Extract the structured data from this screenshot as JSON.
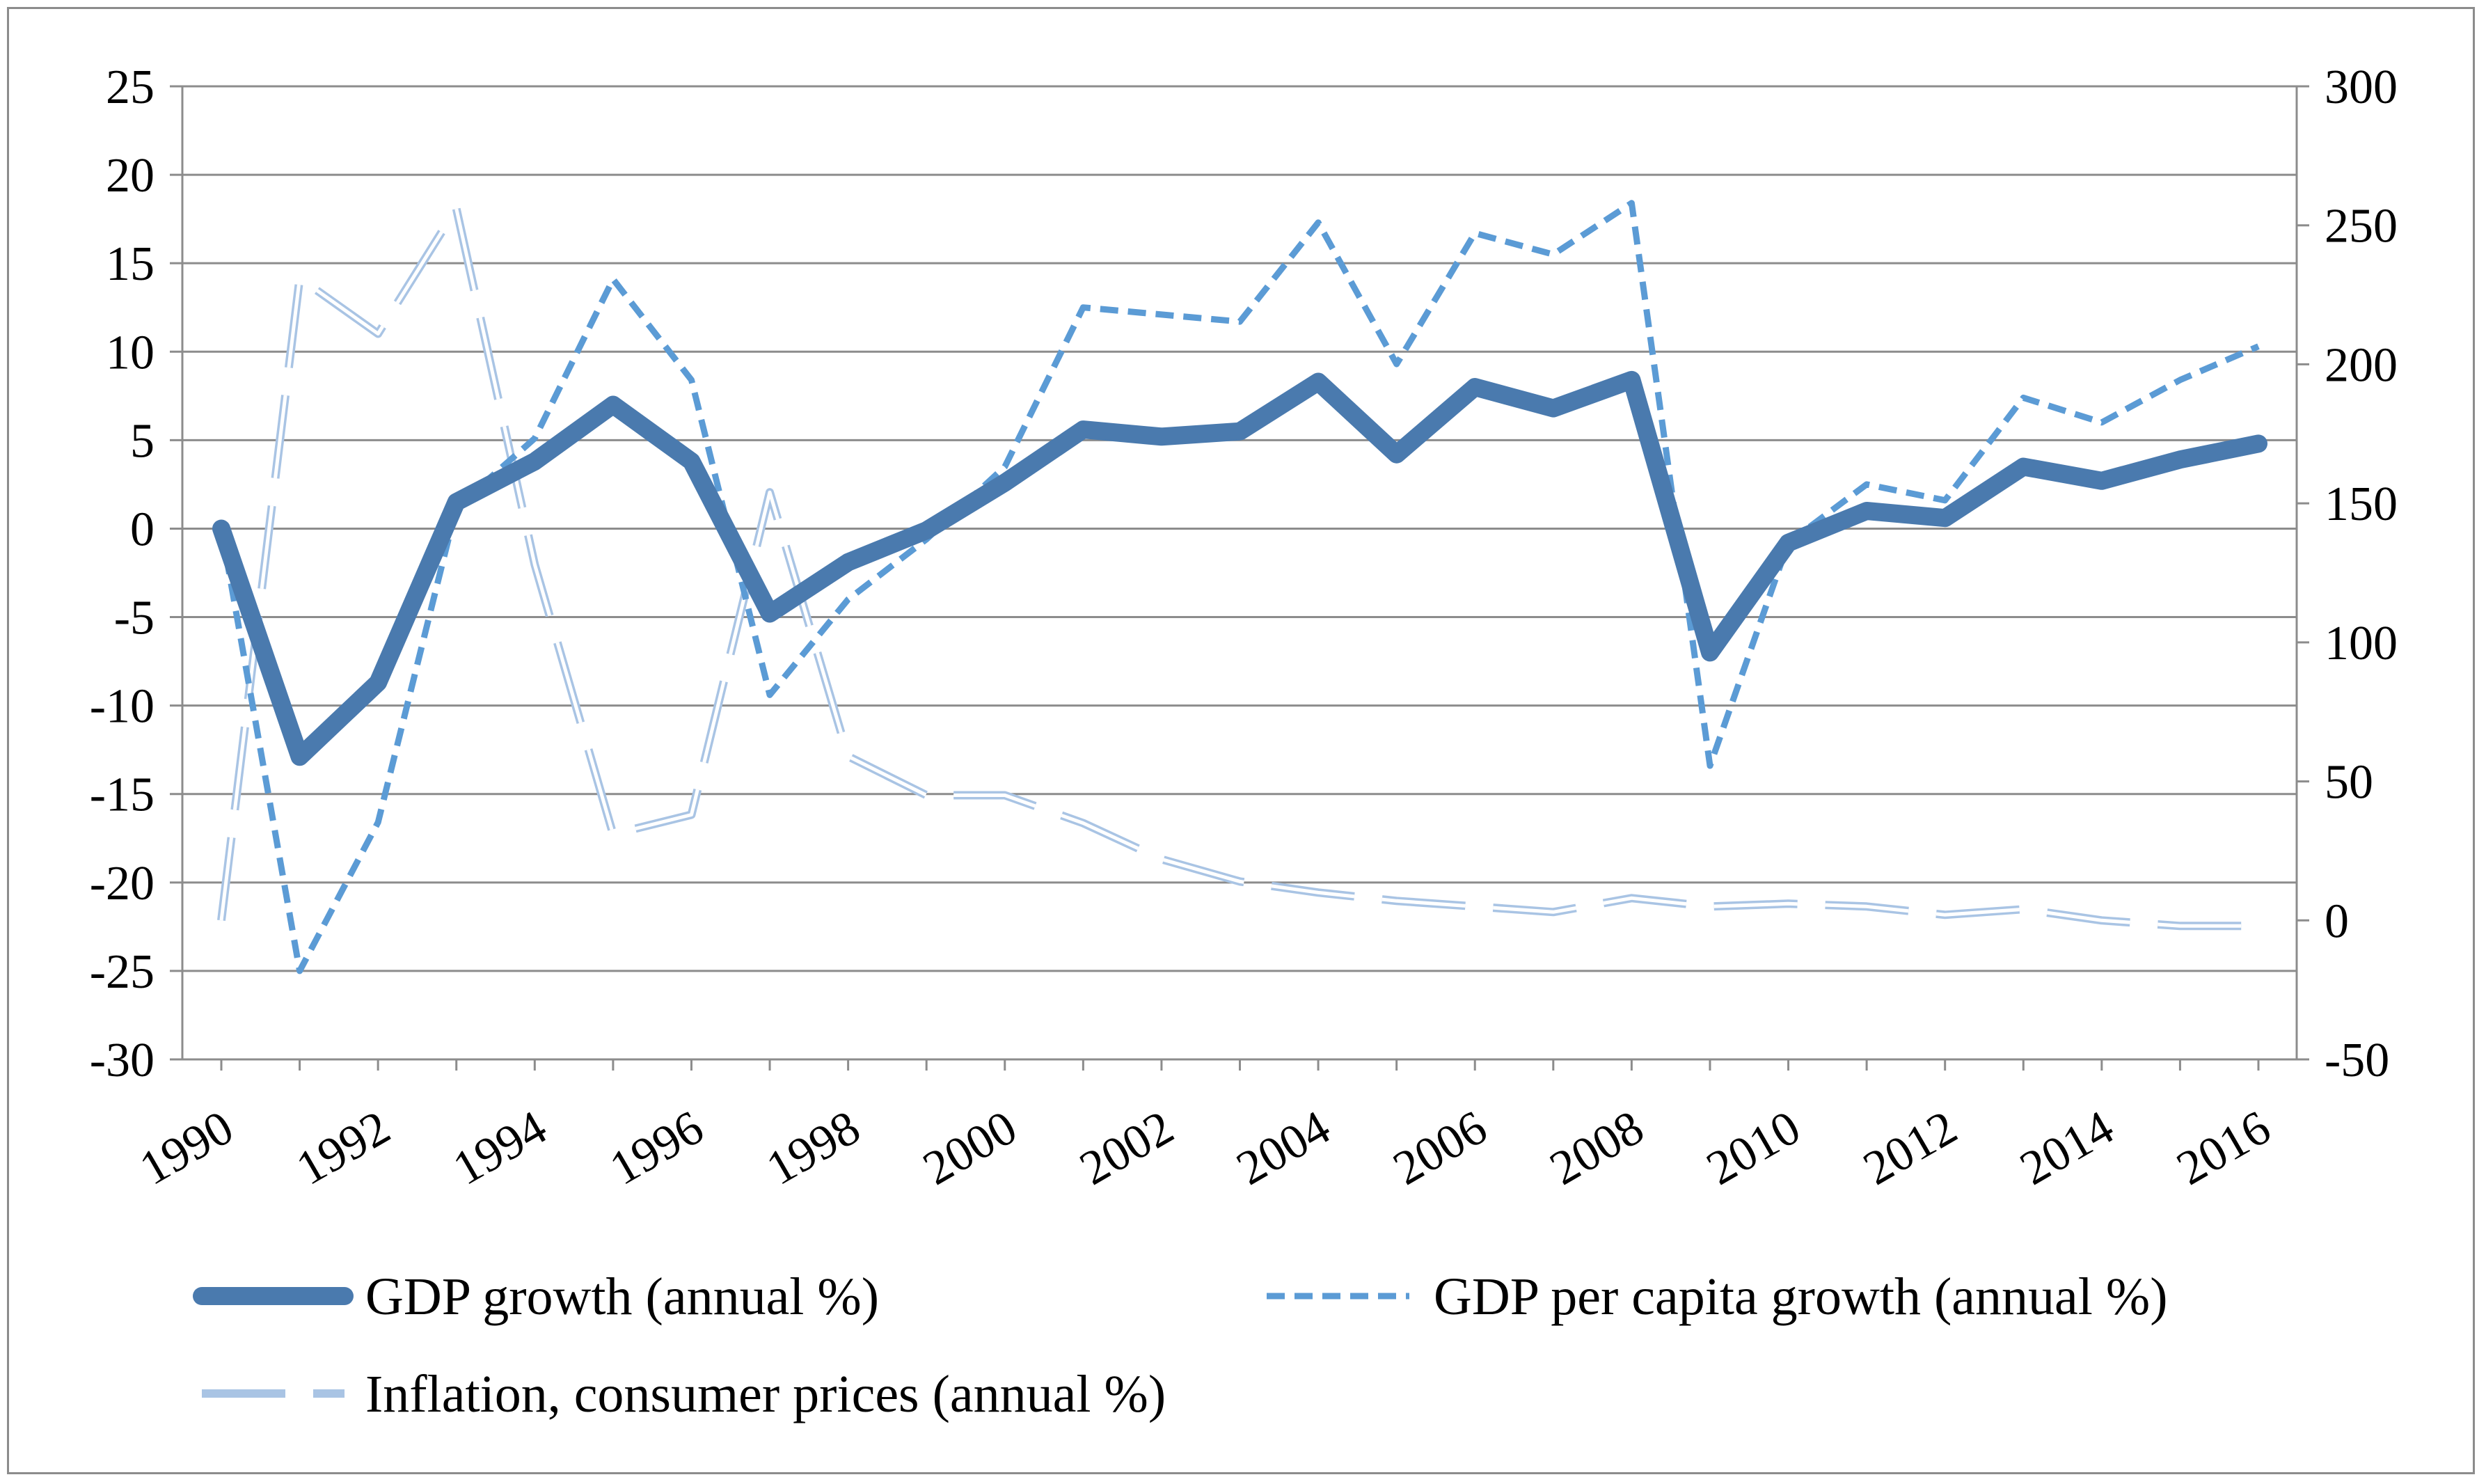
{
  "chart_data": {
    "type": "line",
    "title": "",
    "xlabel": "",
    "ylabel": "",
    "y2label": "",
    "grid": true,
    "legend_position": "bottom",
    "x": [
      1990,
      1991,
      1992,
      1993,
      1994,
      1995,
      1996,
      1997,
      1998,
      1999,
      2000,
      2001,
      2002,
      2003,
      2004,
      2005,
      2006,
      2007,
      2008,
      2009,
      2010,
      2011,
      2012,
      2013,
      2014,
      2015,
      2016
    ],
    "x_tick_labels": [
      "1990",
      "1992",
      "1994",
      "1996",
      "1998",
      "2000",
      "2002",
      "2004",
      "2006",
      "2008",
      "2010",
      "2012",
      "2014",
      "2016"
    ],
    "ylim": [
      -30,
      25
    ],
    "y_ticks": [
      25,
      20,
      15,
      10,
      5,
      0,
      -5,
      -10,
      -15,
      -20,
      -25,
      -30
    ],
    "y_tick_labels": [
      "25",
      "20",
      "15",
      "10",
      "5",
      "0",
      "-5",
      "-10",
      "-15",
      "-20",
      "-25",
      "-30"
    ],
    "y2lim": [
      -50,
      300
    ],
    "y2_ticks": [
      300,
      250,
      200,
      150,
      100,
      50,
      0,
      -50
    ],
    "y2_tick_labels": [
      "300",
      "250",
      "200",
      "150",
      "100",
      "50",
      "0",
      "-50"
    ],
    "series": [
      {
        "name": "GDP growth (annual %)",
        "axis": "left",
        "style": "solid-thick",
        "color": "#4f81bd",
        "values": [
          0,
          -12.9,
          -8.7,
          1.5,
          3.8,
          7.0,
          3.8,
          -4.8,
          -1.9,
          -0.1,
          2.6,
          5.6,
          5.2,
          5.5,
          8.3,
          4.2,
          8.0,
          6.8,
          8.4,
          -7.0,
          -0.8,
          1.0,
          0.6,
          3.5,
          2.7,
          3.9,
          4.8
        ]
      },
      {
        "name": "GDP per capita growth (annual %)",
        "axis": "left",
        "style": "dashed",
        "color": "#5b9bd5",
        "values": [
          0,
          -25.0,
          -16.6,
          1.2,
          5.1,
          14.1,
          8.4,
          -9.4,
          -4.0,
          -0.6,
          3.5,
          12.5,
          12.1,
          11.7,
          17.3,
          9.3,
          16.7,
          15.5,
          18.4,
          -13.4,
          -0.8,
          2.5,
          1.6,
          7.4,
          6.0,
          8.4,
          10.3
        ]
      },
      {
        "name": "Inflation, consumer prices (annual %)",
        "axis": "right",
        "style": "long-dash-light",
        "color": "#a9c4e4",
        "values": [
          0,
          231,
          211,
          256,
          128,
          31,
          38,
          154,
          59,
          45,
          45,
          35,
          22,
          14,
          10,
          7,
          5,
          3,
          8,
          5,
          6,
          5,
          2,
          4,
          0,
          -2,
          -2
        ]
      }
    ]
  }
}
